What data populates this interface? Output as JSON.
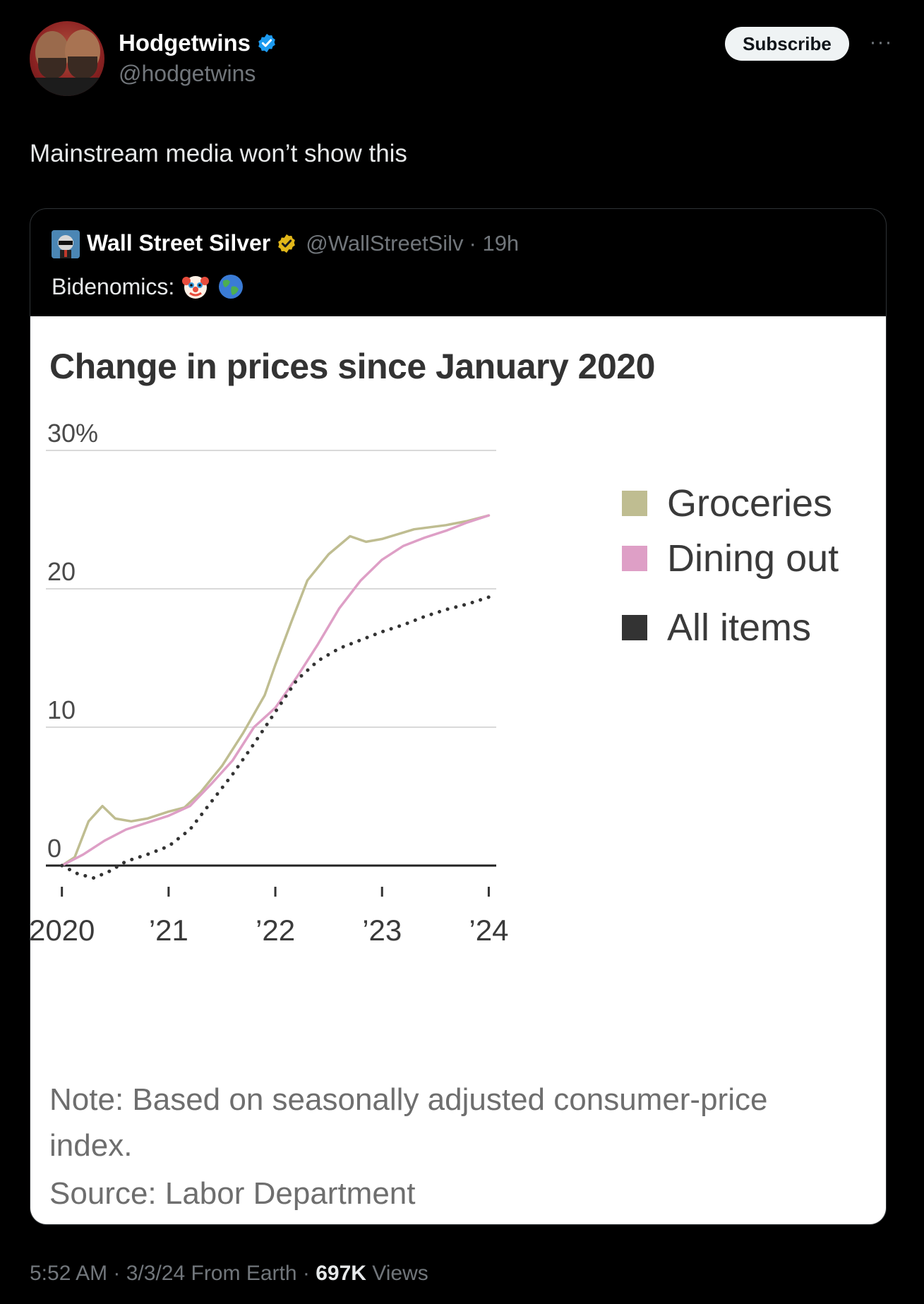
{
  "author": {
    "display_name": "Hodgetwins",
    "handle": "@hodgetwins",
    "verified_icon": "verified-badge-blue"
  },
  "subscribe_label": "Subscribe",
  "more_label": "···",
  "tweet_text": "Mainstream media won’t show this",
  "quote": {
    "display_name": "Wall Street Silver",
    "handle": "@WallStreetSilv",
    "time": "· 19h",
    "verified_icon": "verified-badge-gold",
    "text": "Bidenomics:",
    "emojis": [
      "clown-face",
      "globe-earth"
    ]
  },
  "chart_data": {
    "type": "line",
    "title": "Change in prices since January 2020",
    "ylim": [
      -1.5,
      30
    ],
    "y_ticks": [
      30,
      20,
      10,
      0
    ],
    "y_tick_labels": [
      "30%",
      "20",
      "10",
      "0"
    ],
    "x_ticks": [
      2020,
      2021,
      2022,
      2023,
      2024
    ],
    "x_tick_labels": [
      "2020",
      "’21",
      "’22",
      "’23",
      "’24"
    ],
    "xlim": [
      2019.85,
      2024.07
    ],
    "grid": true,
    "legend": "right",
    "series": [
      {
        "name": "Groceries",
        "color": "#bfbd91",
        "style": "solid",
        "points": [
          [
            2020.0,
            0
          ],
          [
            2020.12,
            0.6
          ],
          [
            2020.25,
            3.2
          ],
          [
            2020.38,
            4.3
          ],
          [
            2020.5,
            3.4
          ],
          [
            2020.65,
            3.2
          ],
          [
            2020.8,
            3.4
          ],
          [
            2021.0,
            3.9
          ],
          [
            2021.15,
            4.2
          ],
          [
            2021.3,
            5.3
          ],
          [
            2021.5,
            7.2
          ],
          [
            2021.7,
            9.6
          ],
          [
            2021.9,
            12.3
          ],
          [
            2022.0,
            14.5
          ],
          [
            2022.15,
            17.6
          ],
          [
            2022.3,
            20.6
          ],
          [
            2022.5,
            22.5
          ],
          [
            2022.7,
            23.8
          ],
          [
            2022.85,
            23.4
          ],
          [
            2023.0,
            23.6
          ],
          [
            2023.3,
            24.3
          ],
          [
            2023.6,
            24.6
          ],
          [
            2023.8,
            24.9
          ],
          [
            2024.0,
            25.3
          ]
        ]
      },
      {
        "name": "Dining out",
        "color": "#de9fc6",
        "style": "solid",
        "points": [
          [
            2020.0,
            0
          ],
          [
            2020.2,
            0.8
          ],
          [
            2020.4,
            1.8
          ],
          [
            2020.6,
            2.6
          ],
          [
            2020.8,
            3.1
          ],
          [
            2021.0,
            3.6
          ],
          [
            2021.2,
            4.3
          ],
          [
            2021.4,
            5.9
          ],
          [
            2021.6,
            7.6
          ],
          [
            2021.8,
            10.0
          ],
          [
            2022.0,
            11.4
          ],
          [
            2022.2,
            13.6
          ],
          [
            2022.4,
            16.0
          ],
          [
            2022.6,
            18.6
          ],
          [
            2022.8,
            20.6
          ],
          [
            2023.0,
            22.1
          ],
          [
            2023.2,
            23.1
          ],
          [
            2023.4,
            23.7
          ],
          [
            2023.6,
            24.2
          ],
          [
            2023.8,
            24.8
          ],
          [
            2024.0,
            25.3
          ]
        ]
      },
      {
        "name": "All items",
        "color": "#333333",
        "style": "dotted",
        "points": [
          [
            2020.0,
            0
          ],
          [
            2020.15,
            -0.6
          ],
          [
            2020.3,
            -0.9
          ],
          [
            2020.45,
            -0.4
          ],
          [
            2020.6,
            0.3
          ],
          [
            2020.8,
            0.8
          ],
          [
            2021.0,
            1.4
          ],
          [
            2021.2,
            2.6
          ],
          [
            2021.4,
            4.6
          ],
          [
            2021.6,
            6.6
          ],
          [
            2021.8,
            8.8
          ],
          [
            2022.0,
            11.1
          ],
          [
            2022.2,
            13.4
          ],
          [
            2022.4,
            14.8
          ],
          [
            2022.6,
            15.7
          ],
          [
            2022.8,
            16.3
          ],
          [
            2023.0,
            16.9
          ],
          [
            2023.2,
            17.4
          ],
          [
            2023.4,
            18.0
          ],
          [
            2023.6,
            18.5
          ],
          [
            2023.8,
            18.9
          ],
          [
            2024.0,
            19.4
          ]
        ]
      }
    ],
    "note": "Note: Based on seasonally adjusted consumer-price index.",
    "note_line1": "Note: Based on seasonally adjusted consumer-price",
    "note_line2": "index.",
    "source": "Source: Labor Department"
  },
  "footer": {
    "time": "5:52 AM",
    "date": "3/3/24 From Earth",
    "views_count": "697K",
    "views_label": "Views"
  }
}
